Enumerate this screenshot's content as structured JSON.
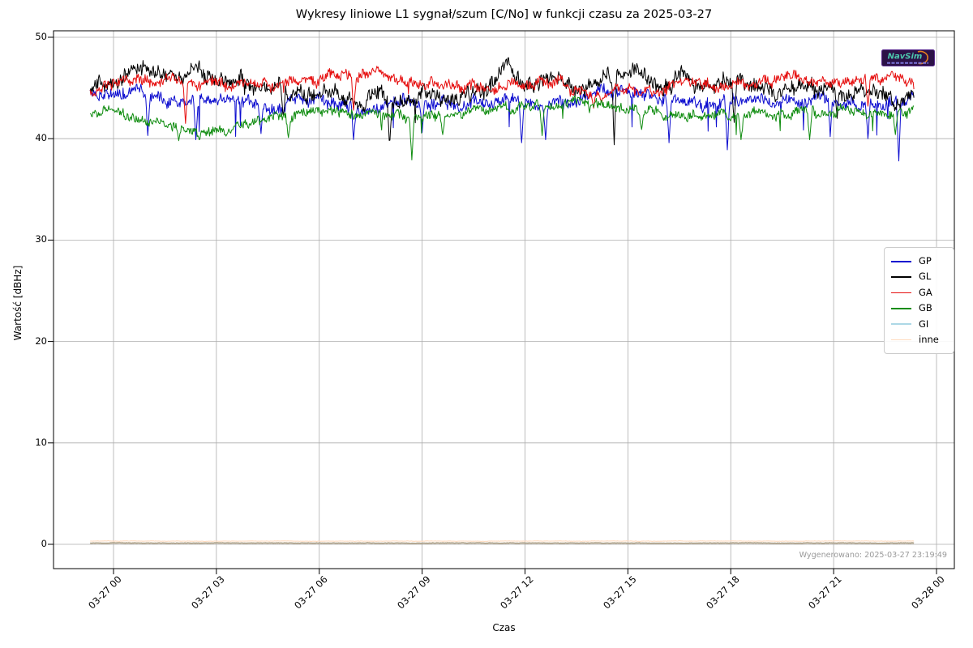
{
  "title": "Wykresy liniowe L1 sygnał/szum [C/No] w funkcji czasu za 2025-03-27",
  "xlabel": "Czas",
  "ylabel": "Wartość [dBHz]",
  "generated_label": "Wygenerowano: 2025-03-27 23:19:49",
  "logo": {
    "text": "NavSim",
    "bg_color": "#2c1147",
    "text_color": "#4cc8ad",
    "swoosh_color": "#e6801e"
  },
  "legend": [
    {
      "label": "GP",
      "color": "#0d0dcf"
    },
    {
      "label": "GL",
      "color": "#000000"
    },
    {
      "label": "GA",
      "color": "#e60f0f"
    },
    {
      "label": "GB",
      "color": "#0f8c0f"
    },
    {
      "label": "GI",
      "color": "#add8e6"
    },
    {
      "label": "inne",
      "color": "#ffdcc0"
    }
  ],
  "axes": {
    "y_ticks": [
      0,
      10,
      20,
      30,
      40,
      50
    ],
    "x_tick_labels": [
      "03-27 00",
      "03-27 03",
      "03-27 06",
      "03-27 09",
      "03-27 12",
      "03-27 15",
      "03-27 18",
      "03-27 21",
      "03-28 00"
    ],
    "x_tick_hours": [
      0,
      3,
      6,
      9,
      12,
      15,
      18,
      21,
      24
    ],
    "grid_color": "#adadad",
    "spine_color": "#000000"
  },
  "chart_data": {
    "type": "line",
    "title": "Wykresy liniowe L1 sygnał/szum [C/No] w funkcji czasu za 2025-03-27",
    "xlabel": "Czas",
    "ylabel": "Wartość [dBHz]",
    "x_unit": "hours relative to 2025-03-27 00:00",
    "xlim": [
      -1.75,
      24.55
    ],
    "ylim": [
      -2.4,
      50.6
    ],
    "grid": true,
    "legend_position": "center right",
    "noise_seed": 7,
    "series": [
      {
        "name": "GP",
        "color": "#0d0dcf",
        "width": 1.0,
        "noise": 0.55,
        "spike_prob": 0.012,
        "spike_depth": 3.2,
        "points": [
          [
            -0.68,
            44.6
          ],
          [
            0,
            44.2
          ],
          [
            0.6,
            44.8
          ],
          [
            1.2,
            43.8
          ],
          [
            2,
            43.3
          ],
          [
            2.8,
            43.6
          ],
          [
            3.4,
            44.2
          ],
          [
            4,
            43.6
          ],
          [
            4.6,
            43.2
          ],
          [
            5.2,
            43.6
          ],
          [
            6,
            43.9
          ],
          [
            6.6,
            43.3
          ],
          [
            7.2,
            42.9
          ],
          [
            8,
            43.3
          ],
          [
            8.6,
            43.6
          ],
          [
            9.2,
            43.3
          ],
          [
            9.8,
            43.9
          ],
          [
            10.4,
            43.6
          ],
          [
            11,
            43.3
          ],
          [
            11.6,
            43.8
          ],
          [
            12.2,
            43.6
          ],
          [
            12.8,
            43.3
          ],
          [
            13.4,
            43.9
          ],
          [
            14,
            44.3
          ],
          [
            14.6,
            44.6
          ],
          [
            15.2,
            44.8
          ],
          [
            15.8,
            44.3
          ],
          [
            16.4,
            43.9
          ],
          [
            17,
            43.6
          ],
          [
            17.6,
            43.4
          ],
          [
            18.2,
            43.9
          ],
          [
            18.8,
            44.3
          ],
          [
            19.4,
            43.9
          ],
          [
            20,
            43.7
          ],
          [
            20.6,
            44.2
          ],
          [
            21.2,
            43.9
          ],
          [
            21.8,
            43.6
          ],
          [
            22.4,
            43.4
          ],
          [
            23,
            43.9
          ],
          [
            23.34,
            44.2
          ]
        ],
        "dips": [
          [
            1,
            40.3
          ],
          [
            2.4,
            39.9
          ],
          [
            4.3,
            40.5
          ],
          [
            7,
            39.9
          ],
          [
            9,
            40.6
          ],
          [
            11.9,
            39.6
          ],
          [
            12.6,
            39.9
          ],
          [
            16.2,
            39.6
          ],
          [
            17.9,
            38.9
          ],
          [
            20.9,
            40.2
          ],
          [
            22,
            40
          ],
          [
            22.9,
            37.8
          ]
        ]
      },
      {
        "name": "GL",
        "color": "#000000",
        "width": 1.0,
        "noise": 0.7,
        "spike_prob": 0.006,
        "spike_depth": 2.2,
        "points": [
          [
            -0.68,
            45.1
          ],
          [
            0,
            45.3
          ],
          [
            0.5,
            46.9
          ],
          [
            0.9,
            47.2
          ],
          [
            1.3,
            46.4
          ],
          [
            2,
            46.2
          ],
          [
            2.5,
            46.8
          ],
          [
            3,
            45.7
          ],
          [
            3.6,
            45.9
          ],
          [
            4.2,
            44.8
          ],
          [
            4.8,
            45.2
          ],
          [
            5.4,
            44.3
          ],
          [
            6,
            45.1
          ],
          [
            6.6,
            44.7
          ],
          [
            7.2,
            44.2
          ],
          [
            7.8,
            43.9
          ],
          [
            8.4,
            43.6
          ],
          [
            9,
            44.4
          ],
          [
            9.6,
            43.8
          ],
          [
            10.2,
            44.5
          ],
          [
            10.8,
            44.2
          ],
          [
            11.2,
            46.8
          ],
          [
            11.5,
            48
          ],
          [
            11.7,
            46.2
          ],
          [
            12,
            45.2
          ],
          [
            12.5,
            45.5
          ],
          [
            13,
            45.8
          ],
          [
            13.5,
            44.9
          ],
          [
            14.1,
            46.2
          ],
          [
            14.5,
            46.8
          ],
          [
            15,
            47
          ],
          [
            15.5,
            46.5
          ],
          [
            16,
            45.3
          ],
          [
            16.6,
            46.4
          ],
          [
            17.2,
            45.3
          ],
          [
            17.8,
            45.8
          ],
          [
            18.4,
            45
          ],
          [
            19,
            45.4
          ],
          [
            19.6,
            44.9
          ],
          [
            20.2,
            45.2
          ],
          [
            20.8,
            44.6
          ],
          [
            21.4,
            44.2
          ],
          [
            22,
            44.7
          ],
          [
            22.6,
            43.9
          ],
          [
            23,
            44.1
          ],
          [
            23.34,
            44.8
          ]
        ],
        "dips": [
          [
            4.95,
            42
          ],
          [
            8.05,
            39.1
          ],
          [
            14.6,
            39.4
          ],
          [
            18.1,
            41.6
          ],
          [
            21.1,
            42
          ]
        ]
      },
      {
        "name": "GA",
        "color": "#e60f0f",
        "width": 1.0,
        "noise": 0.5,
        "spike_prob": 0.005,
        "spike_depth": 1.8,
        "points": [
          [
            -0.68,
            44.6
          ],
          [
            0,
            45.2
          ],
          [
            0.6,
            45.6
          ],
          [
            1.2,
            45.8
          ],
          [
            2,
            45.6
          ],
          [
            2.8,
            45.9
          ],
          [
            3.5,
            45.3
          ],
          [
            4.2,
            45.6
          ],
          [
            5,
            45.2
          ],
          [
            5.6,
            45.4
          ],
          [
            6.2,
            46.1
          ],
          [
            6.8,
            46.5
          ],
          [
            7.4,
            46.4
          ],
          [
            8,
            46.3
          ],
          [
            8.6,
            45.6
          ],
          [
            9.2,
            45.2
          ],
          [
            9.8,
            45
          ],
          [
            10.4,
            45.2
          ],
          [
            11,
            44.9
          ],
          [
            11.6,
            45.4
          ],
          [
            12.2,
            45.3
          ],
          [
            12.8,
            45.6
          ],
          [
            13.3,
            44.9
          ],
          [
            13.8,
            44.4
          ],
          [
            14.2,
            43.9
          ],
          [
            14.6,
            44.9
          ],
          [
            15.2,
            44.6
          ],
          [
            15.8,
            44.4
          ],
          [
            16.4,
            45.3
          ],
          [
            17,
            45.6
          ],
          [
            17.6,
            45.2
          ],
          [
            18.2,
            45.6
          ],
          [
            18.8,
            45.3
          ],
          [
            19.4,
            45.9
          ],
          [
            19.9,
            46.5
          ],
          [
            20.4,
            45.6
          ],
          [
            21,
            45.3
          ],
          [
            21.6,
            45.9
          ],
          [
            22.2,
            46.3
          ],
          [
            22.7,
            46.1
          ],
          [
            23.34,
            45.7
          ]
        ],
        "dips": [
          [
            2.1,
            41.5
          ],
          [
            7,
            42.8
          ],
          [
            14,
            43
          ],
          [
            22,
            43.2
          ]
        ]
      },
      {
        "name": "GB",
        "color": "#0f8c0f",
        "width": 1.0,
        "noise": 0.45,
        "spike_prob": 0.008,
        "spike_depth": 2.0,
        "points": [
          [
            -0.68,
            42.4
          ],
          [
            0,
            42.8
          ],
          [
            0.5,
            42.2
          ],
          [
            1,
            41.6
          ],
          [
            1.6,
            41.2
          ],
          [
            2.2,
            40.9
          ],
          [
            2.8,
            40.7
          ],
          [
            3.4,
            41
          ],
          [
            4,
            41.5
          ],
          [
            4.6,
            41.9
          ],
          [
            5.2,
            42.1
          ],
          [
            5.8,
            42.4
          ],
          [
            6.4,
            42.6
          ],
          [
            7,
            42.5
          ],
          [
            7.6,
            42.4
          ],
          [
            8.2,
            42.3
          ],
          [
            8.8,
            42.1
          ],
          [
            9.4,
            42.4
          ],
          [
            10,
            42.6
          ],
          [
            10.6,
            42.9
          ],
          [
            11.2,
            43.1
          ],
          [
            11.8,
            43.2
          ],
          [
            12.4,
            43.3
          ],
          [
            13,
            43.4
          ],
          [
            13.6,
            43.9
          ],
          [
            14.1,
            43.6
          ],
          [
            14.6,
            43.1
          ],
          [
            15.2,
            42.9
          ],
          [
            15.8,
            42.6
          ],
          [
            16.4,
            42.3
          ],
          [
            17,
            42.1
          ],
          [
            17.6,
            42.4
          ],
          [
            18.2,
            42.2
          ],
          [
            18.8,
            42.6
          ],
          [
            19.4,
            42.4
          ],
          [
            20,
            42.5
          ],
          [
            20.6,
            42.6
          ],
          [
            21.2,
            43.1
          ],
          [
            21.8,
            42.7
          ],
          [
            22.4,
            42.4
          ],
          [
            23,
            42.3
          ],
          [
            23.34,
            42.4
          ]
        ],
        "dips": [
          [
            1.9,
            39.8
          ],
          [
            2.5,
            39.9
          ],
          [
            5.1,
            40.1
          ],
          [
            8.7,
            37.9
          ],
          [
            9.6,
            40.4
          ],
          [
            12.5,
            40.3
          ],
          [
            15.4,
            40.9
          ],
          [
            18.3,
            39.9
          ],
          [
            20.3,
            39.9
          ],
          [
            22.8,
            40.4
          ]
        ]
      },
      {
        "name": "GI",
        "color": "#add8e6",
        "render_color": "#b2a58c",
        "width": 1.8,
        "noise": 0.02,
        "spike_prob": 0,
        "spike_depth": 0,
        "points": [
          [
            -0.68,
            0.12
          ],
          [
            23.34,
            0.12
          ]
        ],
        "dips": []
      },
      {
        "name": "inne",
        "color": "#ffdcc0",
        "width": 1.1,
        "noise": 0.02,
        "spike_prob": 0,
        "spike_depth": 0,
        "points": [
          [
            -0.68,
            0.32
          ],
          [
            23.34,
            0.32
          ]
        ],
        "dips": []
      }
    ]
  }
}
